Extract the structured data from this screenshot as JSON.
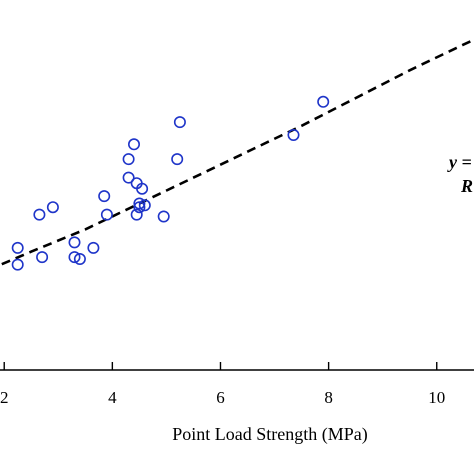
{
  "chart_data": {
    "type": "scatter",
    "xlabel": "Point Load Strength (MPa)",
    "ylabel": "",
    "title": "",
    "xlim": [
      1.7,
      10.8
    ],
    "ylim": [
      0,
      1
    ],
    "xticks": [
      "2",
      "4",
      "6",
      "8",
      "10"
    ],
    "xtick_values": [
      2,
      4,
      6,
      8,
      10
    ],
    "grid": false,
    "legend": "none",
    "equation_label": "y =",
    "equation_label_line2": "R",
    "colors": {
      "points": "#1f35c9",
      "fit": "#000000"
    },
    "series": [
      {
        "kind": "points",
        "points": [
          [
            2.25,
            0.33
          ],
          [
            2.25,
            0.285
          ],
          [
            2.65,
            0.42
          ],
          [
            2.7,
            0.305
          ],
          [
            2.9,
            0.44
          ],
          [
            3.3,
            0.345
          ],
          [
            3.3,
            0.305
          ],
          [
            3.4,
            0.3
          ],
          [
            3.65,
            0.33
          ],
          [
            3.85,
            0.47
          ],
          [
            3.9,
            0.42
          ],
          [
            4.3,
            0.57
          ],
          [
            4.3,
            0.52
          ],
          [
            4.4,
            0.61
          ],
          [
            4.45,
            0.505
          ],
          [
            4.45,
            0.42
          ],
          [
            4.5,
            0.45
          ],
          [
            4.55,
            0.49
          ],
          [
            4.5,
            0.44
          ],
          [
            4.6,
            0.445
          ],
          [
            4.95,
            0.415
          ],
          [
            5.2,
            0.57
          ],
          [
            5.25,
            0.67
          ],
          [
            7.35,
            0.635
          ],
          [
            7.9,
            0.725
          ]
        ]
      },
      {
        "kind": "fit",
        "points": [
          [
            1.7,
            0.27
          ],
          [
            2.5,
            0.32
          ],
          [
            3.5,
            0.38
          ],
          [
            4.5,
            0.45
          ],
          [
            5.5,
            0.52
          ],
          [
            6.5,
            0.59
          ],
          [
            7.5,
            0.66
          ],
          [
            8.5,
            0.735
          ],
          [
            9.5,
            0.81
          ],
          [
            10.5,
            0.88
          ],
          [
            10.8,
            0.9
          ]
        ]
      }
    ]
  }
}
